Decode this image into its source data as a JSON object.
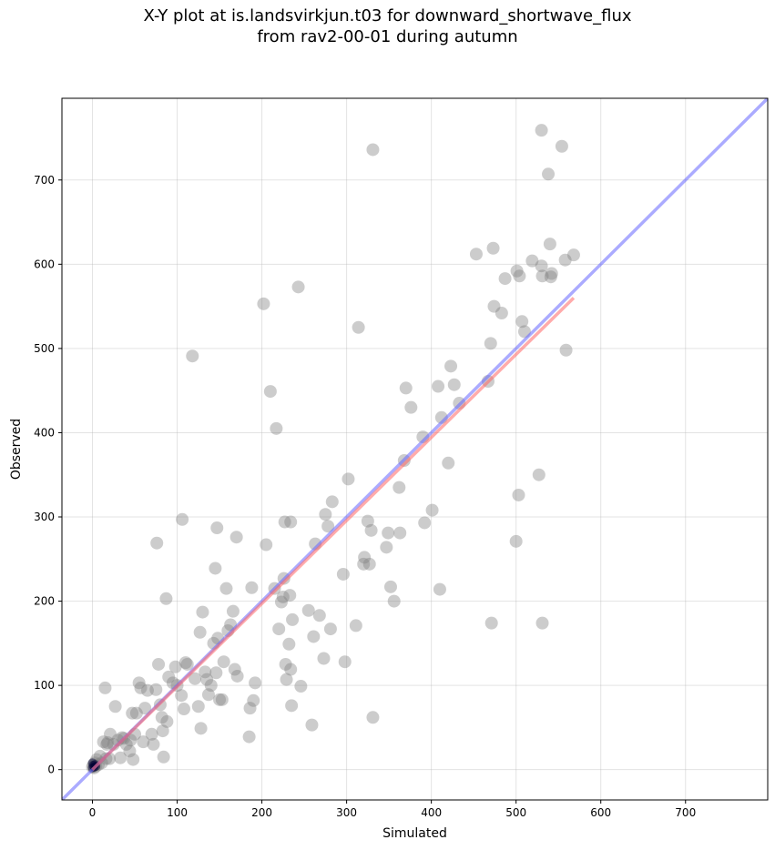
{
  "chart_data": {
    "type": "scatter",
    "title": "X-Y plot at is.landsvirkjun.t03 for downward_shortwave_flux",
    "subtitle": "from rav2-00-01 during autumn",
    "xlabel": "Simulated",
    "ylabel": "Observed",
    "xlim": [
      -36,
      797
    ],
    "ylim": [
      -36,
      797
    ],
    "xticks": [
      0,
      100,
      200,
      300,
      400,
      500,
      600,
      700
    ],
    "yticks": [
      0,
      100,
      200,
      300,
      400,
      500,
      600,
      700
    ],
    "grid": true,
    "colors": {
      "points": "#808080",
      "one_to_one": "#6666ff",
      "regression": "#ff6666",
      "origin_points": "#000033"
    },
    "reference_line": [
      [
        -36,
        -36
      ],
      [
        797,
        797
      ]
    ],
    "regression_line": [
      [
        0,
        0
      ],
      [
        568,
        560
      ]
    ],
    "points": [
      [
        0,
        3
      ],
      [
        1,
        5
      ],
      [
        2,
        2
      ],
      [
        3,
        8
      ],
      [
        4,
        4
      ],
      [
        5,
        12
      ],
      [
        7,
        6
      ],
      [
        9,
        16
      ],
      [
        11,
        8
      ],
      [
        13,
        33
      ],
      [
        15,
        97
      ],
      [
        16,
        13
      ],
      [
        17,
        30
      ],
      [
        18,
        32
      ],
      [
        20,
        13
      ],
      [
        21,
        42
      ],
      [
        25,
        30
      ],
      [
        27,
        75
      ],
      [
        30,
        35
      ],
      [
        33,
        14
      ],
      [
        35,
        38
      ],
      [
        37,
        37
      ],
      [
        40,
        30
      ],
      [
        44,
        22
      ],
      [
        45,
        35
      ],
      [
        47,
        67
      ],
      [
        48,
        12
      ],
      [
        50,
        42
      ],
      [
        52,
        67
      ],
      [
        55,
        103
      ],
      [
        57,
        97
      ],
      [
        60,
        33
      ],
      [
        62,
        73
      ],
      [
        65,
        94
      ],
      [
        70,
        42
      ],
      [
        72,
        30
      ],
      [
        75,
        95
      ],
      [
        76,
        269
      ],
      [
        78,
        125
      ],
      [
        80,
        77
      ],
      [
        82,
        62
      ],
      [
        83,
        46
      ],
      [
        84,
        15
      ],
      [
        87,
        203
      ],
      [
        88,
        57
      ],
      [
        90,
        110
      ],
      [
        95,
        103
      ],
      [
        98,
        122
      ],
      [
        100,
        100
      ],
      [
        105,
        88
      ],
      [
        106,
        297
      ],
      [
        108,
        72
      ],
      [
        110,
        127
      ],
      [
        112,
        125
      ],
      [
        118,
        491
      ],
      [
        121,
        108
      ],
      [
        125,
        75
      ],
      [
        127,
        163
      ],
      [
        128,
        49
      ],
      [
        130,
        187
      ],
      [
        133,
        116
      ],
      [
        135,
        107
      ],
      [
        137,
        89
      ],
      [
        140,
        100
      ],
      [
        143,
        150
      ],
      [
        145,
        239
      ],
      [
        146,
        115
      ],
      [
        147,
        287
      ],
      [
        148,
        156
      ],
      [
        150,
        83
      ],
      [
        153,
        83
      ],
      [
        155,
        128
      ],
      [
        158,
        215
      ],
      [
        160,
        165
      ],
      [
        163,
        172
      ],
      [
        166,
        188
      ],
      [
        168,
        119
      ],
      [
        170,
        276
      ],
      [
        171,
        111
      ],
      [
        185,
        39
      ],
      [
        186,
        73
      ],
      [
        188,
        216
      ],
      [
        190,
        82
      ],
      [
        192,
        103
      ],
      [
        202,
        553
      ],
      [
        205,
        267
      ],
      [
        210,
        449
      ],
      [
        215,
        215
      ],
      [
        217,
        405
      ],
      [
        220,
        167
      ],
      [
        223,
        199
      ],
      [
        225,
        205
      ],
      [
        226,
        227
      ],
      [
        227,
        294
      ],
      [
        228,
        125
      ],
      [
        229,
        107
      ],
      [
        232,
        149
      ],
      [
        233,
        207
      ],
      [
        234,
        119
      ],
      [
        234,
        294
      ],
      [
        235,
        76
      ],
      [
        236,
        178
      ],
      [
        243,
        573
      ],
      [
        246,
        99
      ],
      [
        255,
        189
      ],
      [
        259,
        53
      ],
      [
        261,
        158
      ],
      [
        263,
        268
      ],
      [
        268,
        183
      ],
      [
        273,
        132
      ],
      [
        275,
        303
      ],
      [
        278,
        289
      ],
      [
        281,
        167
      ],
      [
        283,
        318
      ],
      [
        296,
        232
      ],
      [
        298,
        128
      ],
      [
        302,
        345
      ],
      [
        311,
        171
      ],
      [
        314,
        525
      ],
      [
        320,
        244
      ],
      [
        321,
        252
      ],
      [
        325,
        295
      ],
      [
        327,
        244
      ],
      [
        329,
        284
      ],
      [
        331,
        62
      ],
      [
        331,
        736
      ],
      [
        347,
        264
      ],
      [
        349,
        281
      ],
      [
        352,
        217
      ],
      [
        356,
        200
      ],
      [
        362,
        335
      ],
      [
        363,
        281
      ],
      [
        368,
        367
      ],
      [
        370,
        453
      ],
      [
        376,
        430
      ],
      [
        390,
        395
      ],
      [
        392,
        293
      ],
      [
        401,
        308
      ],
      [
        408,
        455
      ],
      [
        410,
        214
      ],
      [
        412,
        418
      ],
      [
        420,
        364
      ],
      [
        423,
        479
      ],
      [
        427,
        457
      ],
      [
        433,
        435
      ],
      [
        453,
        612
      ],
      [
        467,
        461
      ],
      [
        470,
        506
      ],
      [
        471,
        174
      ],
      [
        473,
        619
      ],
      [
        474,
        550
      ],
      [
        483,
        542
      ],
      [
        487,
        583
      ],
      [
        500,
        271
      ],
      [
        501,
        592
      ],
      [
        503,
        326
      ],
      [
        504,
        586
      ],
      [
        507,
        532
      ],
      [
        510,
        520
      ],
      [
        519,
        604
      ],
      [
        527,
        350
      ],
      [
        530,
        759
      ],
      [
        530,
        598
      ],
      [
        531,
        174
      ],
      [
        531,
        586
      ],
      [
        538,
        707
      ],
      [
        540,
        624
      ],
      [
        541,
        585
      ],
      [
        542,
        589
      ],
      [
        554,
        740
      ],
      [
        558,
        605
      ],
      [
        559,
        498
      ],
      [
        568,
        611
      ]
    ],
    "origin_points": [
      [
        0,
        2
      ],
      [
        1,
        5
      ],
      [
        2,
        3
      ],
      [
        3,
        6
      ],
      [
        4,
        4
      ],
      [
        0,
        8
      ]
    ]
  }
}
